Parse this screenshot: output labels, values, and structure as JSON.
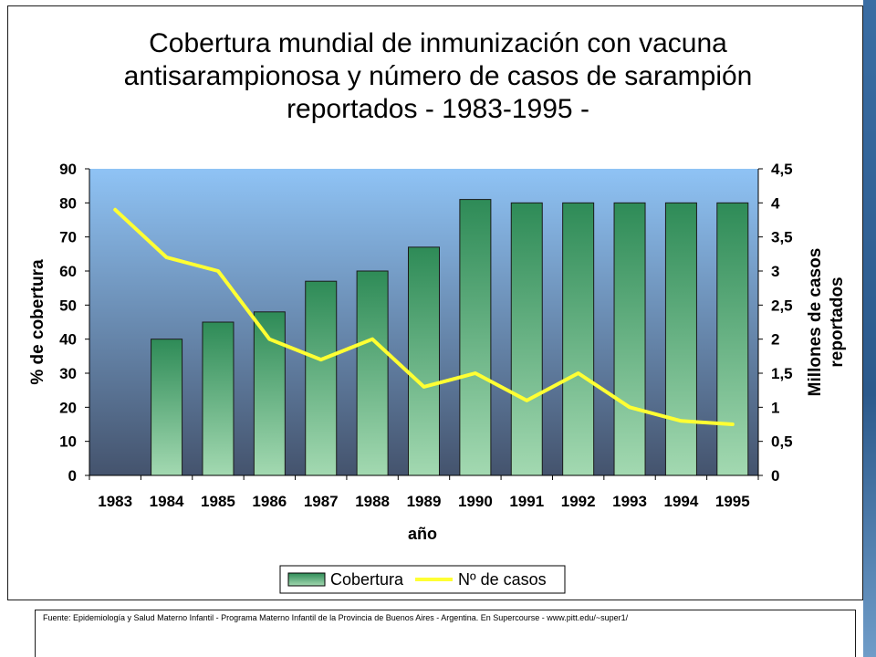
{
  "colors": {
    "plot_top": "#8fc3f5",
    "plot_bottom": "#44536d",
    "bar_top": "#2e8b57",
    "bar_bottom": "#a3d9b1",
    "bar_stroke": "#1a1a1a",
    "line": "#ffff33",
    "accent": "#2c5a8c"
  },
  "chart_data": {
    "type": "bar",
    "title": "Cobertura mundial de inmunización con vacuna antisarampionosa y número de casos de sarampión reportados - 1983-1995 -",
    "xlabel": "año",
    "ylabel": "% de cobertura",
    "y2label_line1": "Millones de casos",
    "y2label_line2": "reportados",
    "categories": [
      "1983",
      "1984",
      "1985",
      "1986",
      "1987",
      "1988",
      "1989",
      "1990",
      "1991",
      "1992",
      "1993",
      "1994",
      "1995"
    ],
    "ylim": [
      0,
      90
    ],
    "yticks": [
      "0",
      "10",
      "20",
      "30",
      "40",
      "50",
      "60",
      "70",
      "80",
      "90"
    ],
    "y2lim": [
      0,
      4.5
    ],
    "y2ticks": [
      "0",
      "0,5",
      "1",
      "1,5",
      "2",
      "2,5",
      "3",
      "3,5",
      "4",
      "4,5"
    ],
    "grid": false,
    "legend_position": "bottom",
    "series": [
      {
        "name": "Cobertura",
        "type": "bar",
        "axis": "left",
        "values": [
          null,
          40,
          45,
          48,
          57,
          60,
          67,
          81,
          80,
          80,
          80,
          80,
          80
        ]
      },
      {
        "name": "Nº de casos",
        "type": "line",
        "axis": "right",
        "values": [
          3.9,
          3.2,
          3.0,
          2.0,
          1.7,
          2.0,
          1.3,
          1.5,
          1.1,
          1.5,
          1.0,
          0.8,
          0.75
        ]
      }
    ]
  },
  "footer": {
    "source": "Fuente: Epidemiología y Salud Materno Infantil - Programa Materno Infantil de la Provincia de Buenos Aires - Argentina. En Supercourse - www.pitt.edu/~super1/"
  }
}
